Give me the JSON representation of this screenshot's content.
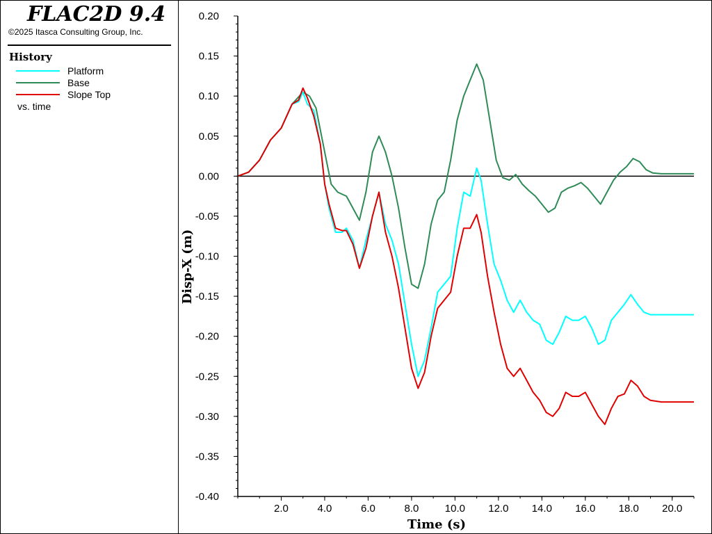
{
  "header": {
    "app_title": "FLAC2D 9.4",
    "copyright": "©2025 Itasca Consulting Group, Inc."
  },
  "legend": {
    "heading": "History",
    "entries": [
      {
        "label": "Platform",
        "color": "#00ffff"
      },
      {
        "label": "Base",
        "color": "#2e8b57"
      },
      {
        "label": "Slope Top",
        "color": "#e00000"
      }
    ],
    "footer": "vs. time"
  },
  "chart_data": {
    "type": "line",
    "xlabel": "Time (s)",
    "ylabel": "Disp-X (m)",
    "xlim": [
      0,
      21
    ],
    "ylim": [
      -0.4,
      0.2
    ],
    "xticks": [
      "2.0",
      "4.0",
      "6.0",
      "8.0",
      "10.0",
      "12.0",
      "14.0",
      "16.0",
      "18.0",
      "20.0"
    ],
    "yticks": [
      "0.20",
      "0.15",
      "0.10",
      "0.05",
      "0.00",
      "-0.05",
      "-0.10",
      "-0.15",
      "-0.20",
      "-0.25",
      "-0.30",
      "-0.35",
      "-0.40"
    ],
    "zero_line": true,
    "series": [
      {
        "name": "Base",
        "color": "#2e8b57",
        "x": [
          0,
          0.5,
          1.0,
          1.5,
          2.0,
          2.5,
          3.0,
          3.3,
          3.6,
          4.0,
          4.3,
          4.6,
          5.0,
          5.3,
          5.6,
          5.9,
          6.2,
          6.5,
          6.8,
          7.1,
          7.4,
          7.7,
          8.0,
          8.3,
          8.6,
          8.9,
          9.2,
          9.5,
          9.8,
          10.1,
          10.4,
          10.7,
          11.0,
          11.3,
          11.6,
          11.9,
          12.2,
          12.5,
          12.8,
          13.1,
          13.4,
          13.7,
          14.0,
          14.3,
          14.6,
          14.9,
          15.2,
          15.5,
          15.8,
          16.1,
          16.4,
          16.7,
          17.0,
          17.3,
          17.6,
          17.9,
          18.2,
          18.5,
          18.8,
          19.1,
          19.5,
          21.0
        ],
        "y": [
          0.0,
          0.005,
          0.02,
          0.045,
          0.06,
          0.09,
          0.105,
          0.1,
          0.085,
          0.03,
          -0.01,
          -0.02,
          -0.025,
          -0.04,
          -0.055,
          -0.02,
          0.03,
          0.05,
          0.03,
          0.0,
          -0.04,
          -0.09,
          -0.135,
          -0.14,
          -0.11,
          -0.06,
          -0.03,
          -0.02,
          0.02,
          0.07,
          0.1,
          0.12,
          0.14,
          0.12,
          0.07,
          0.02,
          -0.002,
          -0.005,
          0.002,
          -0.01,
          -0.018,
          -0.025,
          -0.035,
          -0.045,
          -0.04,
          -0.02,
          -0.015,
          -0.012,
          -0.008,
          -0.015,
          -0.025,
          -0.035,
          -0.02,
          -0.005,
          0.005,
          0.012,
          0.022,
          0.018,
          0.008,
          0.004,
          0.003,
          0.003
        ]
      },
      {
        "name": "Platform",
        "color": "#00ffff",
        "x": [
          0,
          0.5,
          1.0,
          1.5,
          2.0,
          2.5,
          2.8,
          3.0,
          3.2,
          3.5,
          3.8,
          4.0,
          4.2,
          4.5,
          4.8,
          5.0,
          5.3,
          5.6,
          5.9,
          6.2,
          6.5,
          6.8,
          7.1,
          7.4,
          7.7,
          8.0,
          8.3,
          8.6,
          8.9,
          9.2,
          9.5,
          9.8,
          10.1,
          10.4,
          10.7,
          11.0,
          11.2,
          11.5,
          11.8,
          12.1,
          12.4,
          12.7,
          13.0,
          13.3,
          13.6,
          13.9,
          14.2,
          14.5,
          14.8,
          15.1,
          15.4,
          15.7,
          16.0,
          16.3,
          16.6,
          16.9,
          17.2,
          17.5,
          17.8,
          18.1,
          18.4,
          18.7,
          19.0,
          19.5,
          21.0
        ],
        "y": [
          0.0,
          0.005,
          0.02,
          0.045,
          0.06,
          0.09,
          0.093,
          0.105,
          0.09,
          0.082,
          0.04,
          -0.01,
          -0.04,
          -0.07,
          -0.07,
          -0.065,
          -0.08,
          -0.115,
          -0.08,
          -0.05,
          -0.02,
          -0.06,
          -0.08,
          -0.11,
          -0.16,
          -0.21,
          -0.25,
          -0.23,
          -0.19,
          -0.145,
          -0.135,
          -0.125,
          -0.065,
          -0.02,
          -0.025,
          0.01,
          -0.005,
          -0.06,
          -0.11,
          -0.13,
          -0.155,
          -0.17,
          -0.155,
          -0.17,
          -0.18,
          -0.185,
          -0.205,
          -0.21,
          -0.195,
          -0.175,
          -0.18,
          -0.18,
          -0.175,
          -0.19,
          -0.21,
          -0.205,
          -0.18,
          -0.17,
          -0.16,
          -0.148,
          -0.16,
          -0.17,
          -0.173,
          -0.173,
          -0.173
        ]
      },
      {
        "name": "Slope Top",
        "color": "#e00000",
        "x": [
          0,
          0.5,
          1.0,
          1.5,
          2.0,
          2.5,
          2.8,
          3.0,
          3.2,
          3.5,
          3.8,
          4.0,
          4.2,
          4.5,
          4.8,
          5.0,
          5.3,
          5.6,
          5.9,
          6.2,
          6.5,
          6.8,
          7.1,
          7.4,
          7.7,
          8.0,
          8.3,
          8.6,
          8.9,
          9.2,
          9.5,
          9.8,
          10.1,
          10.4,
          10.7,
          11.0,
          11.2,
          11.5,
          11.8,
          12.1,
          12.4,
          12.7,
          13.0,
          13.3,
          13.6,
          13.9,
          14.2,
          14.5,
          14.8,
          15.1,
          15.4,
          15.7,
          16.0,
          16.3,
          16.6,
          16.9,
          17.2,
          17.5,
          17.8,
          18.1,
          18.4,
          18.7,
          19.0,
          19.5,
          21.0
        ],
        "y": [
          0.0,
          0.005,
          0.02,
          0.045,
          0.06,
          0.09,
          0.095,
          0.11,
          0.098,
          0.075,
          0.04,
          -0.01,
          -0.035,
          -0.065,
          -0.068,
          -0.068,
          -0.085,
          -0.115,
          -0.09,
          -0.05,
          -0.02,
          -0.07,
          -0.1,
          -0.14,
          -0.19,
          -0.24,
          -0.265,
          -0.245,
          -0.2,
          -0.165,
          -0.155,
          -0.145,
          -0.1,
          -0.065,
          -0.065,
          -0.048,
          -0.07,
          -0.125,
          -0.17,
          -0.21,
          -0.24,
          -0.25,
          -0.24,
          -0.255,
          -0.27,
          -0.28,
          -0.295,
          -0.3,
          -0.29,
          -0.27,
          -0.275,
          -0.275,
          -0.27,
          -0.285,
          -0.3,
          -0.31,
          -0.29,
          -0.275,
          -0.272,
          -0.255,
          -0.262,
          -0.275,
          -0.28,
          -0.282,
          -0.282
        ]
      }
    ]
  }
}
